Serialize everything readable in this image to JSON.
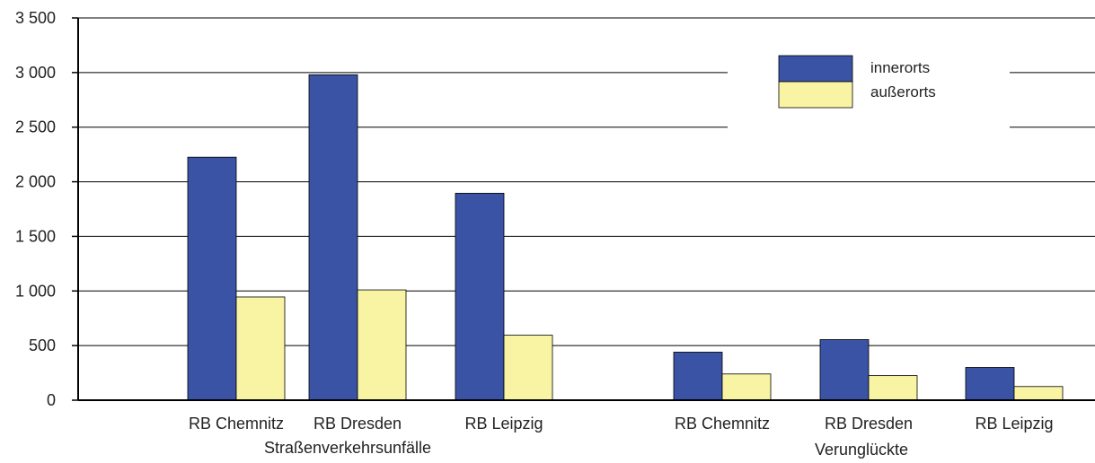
{
  "chart_data": {
    "type": "bar",
    "categories": [
      "RB Chemnitz",
      "RB Dresden",
      "RB Leipzig",
      "RB Chemnitz",
      "RB Dresden",
      "RB Leipzig"
    ],
    "groups": [
      {
        "label": "Straßenverkehrsunfälle",
        "category_indices": [
          0,
          1,
          2
        ]
      },
      {
        "label": "Verunglückte",
        "category_indices": [
          3,
          4,
          5
        ]
      }
    ],
    "series": [
      {
        "name": "innerorts",
        "color": "#3a53a4",
        "values": [
          2225,
          2980,
          1895,
          440,
          555,
          300
        ]
      },
      {
        "name": "außerorts",
        "color": "#f8f4a4",
        "values": [
          945,
          1010,
          595,
          240,
          225,
          125
        ]
      }
    ],
    "ylim": [
      0,
      3500
    ],
    "yticks": [
      0,
      500,
      1000,
      1500,
      2000,
      2500,
      3000,
      3500
    ],
    "ytick_labels": [
      "0",
      "500",
      "1 000",
      "1 500",
      "2 000",
      "2 500",
      "3 000",
      "3 500"
    ],
    "grid": true,
    "legend_position": "top-right",
    "title": "",
    "xlabel": "",
    "ylabel": ""
  }
}
